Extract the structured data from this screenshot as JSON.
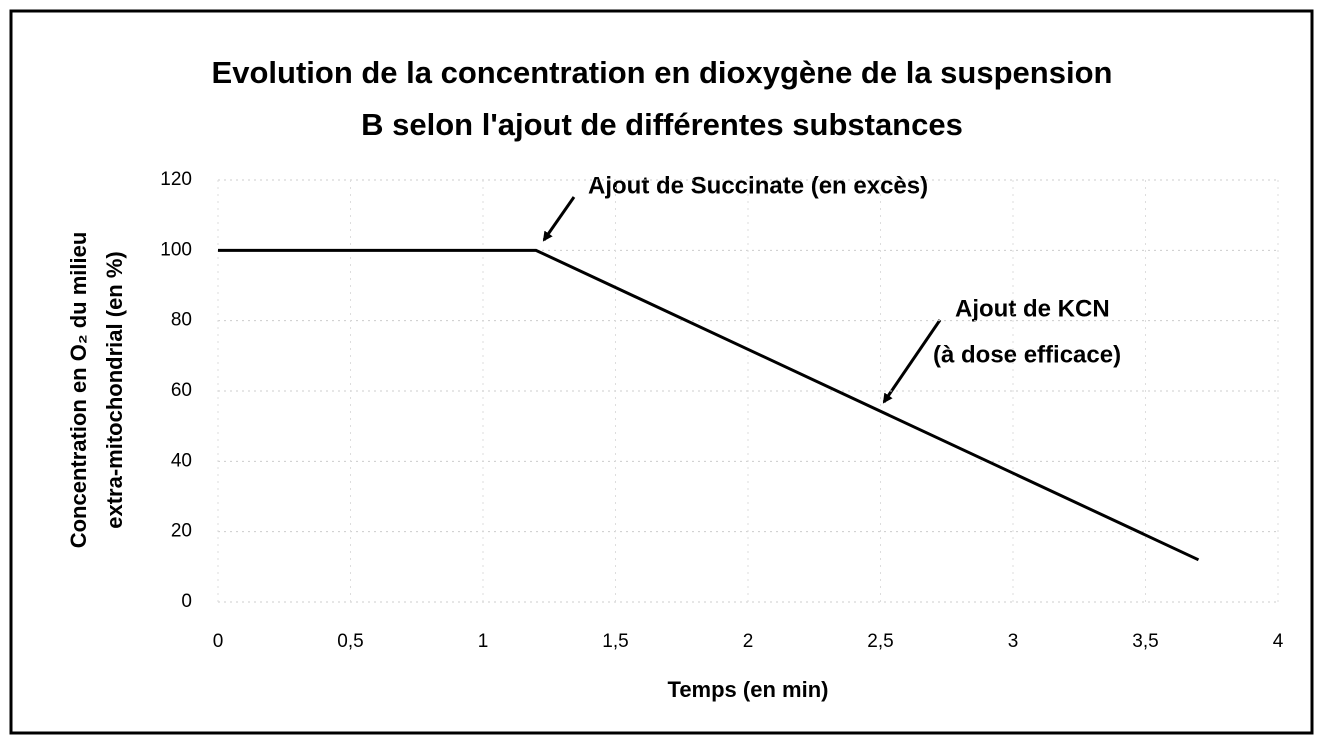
{
  "chart_data": {
    "type": "line",
    "title": [
      "Evolution de la concentration en dioxygène de la suspension",
      "B selon l'ajout de différentes substances"
    ],
    "xlabel": "Temps (en min)",
    "ylabel": [
      "Concentration en O₂ du milieu",
      "extra-mitochondrial (en %)"
    ],
    "x": [
      0,
      1.2,
      3.7
    ],
    "series": [
      {
        "name": null,
        "color": "#000000",
        "values": [
          100,
          100,
          12
        ]
      }
    ],
    "xlim": [
      0,
      4
    ],
    "xticks": [
      0,
      {
        "value": 0.5,
        "label": "0,5"
      },
      1,
      {
        "value": 1.5,
        "label": "1,5"
      },
      2,
      {
        "value": 2.5,
        "label": "2,5"
      },
      3,
      {
        "value": 3.5,
        "label": "3,5"
      },
      4
    ],
    "ylim": [
      0,
      120
    ],
    "yticks": [
      0,
      20,
      40,
      60,
      80,
      100,
      120
    ],
    "grid": true,
    "annotations": [
      "Ajout de Succinate (en excès)",
      "Ajout de KCN",
      "(à dose efficace)"
    ]
  }
}
